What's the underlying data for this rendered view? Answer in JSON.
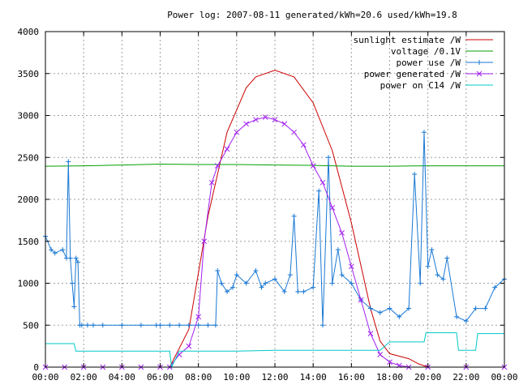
{
  "chart_data": {
    "type": "line",
    "title": "Power log: 2007-08-11 generated/kWh=20.6 used/kWh=19.8",
    "xlabel": "",
    "ylabel": "",
    "grid": true,
    "legend_position": "top-right",
    "x_unit": "hours",
    "xlim": [
      0,
      24
    ],
    "ylim": [
      0,
      4000
    ],
    "x_ticks": [
      "00:00",
      "02:00",
      "04:00",
      "06:00",
      "08:00",
      "10:00",
      "12:00",
      "14:00",
      "16:00",
      "18:00",
      "20:00",
      "22:00",
      "00:00"
    ],
    "y_ticks": [
      "0",
      "500",
      "1000",
      "1500",
      "2000",
      "2500",
      "3000",
      "3500",
      "4000"
    ],
    "series": [
      {
        "name": "sunlight estimate /W",
        "color": "#cc0000",
        "marker": "none",
        "x": [
          6.5,
          7.5,
          8.5,
          9.5,
          10.5,
          11.0,
          12.0,
          13.0,
          14.0,
          15.0,
          16.0,
          17.0,
          17.5,
          18.0,
          18.5,
          19.0,
          19.5,
          20.0
        ],
        "y": [
          0,
          450,
          1800,
          2800,
          3330,
          3460,
          3540,
          3460,
          3150,
          2580,
          1720,
          700,
          310,
          160,
          130,
          100,
          40,
          0
        ]
      },
      {
        "name": "voltage /0.1V",
        "color": "#00a000",
        "marker": "none",
        "x": [
          0,
          2,
          4,
          6,
          8,
          10,
          12,
          14,
          16,
          18,
          20,
          22,
          24
        ],
        "y": [
          2395,
          2400,
          2410,
          2420,
          2415,
          2415,
          2410,
          2405,
          2395,
          2395,
          2400,
          2400,
          2400
        ]
      },
      {
        "name": "power use /W",
        "color": "#1a78d4",
        "marker": "plus",
        "x": [
          0.0,
          0.3,
          0.5,
          0.9,
          1.1,
          1.2,
          1.3,
          1.4,
          1.5,
          1.6,
          1.7,
          1.8,
          1.9,
          2.2,
          2.5,
          3.0,
          4.0,
          5.0,
          5.8,
          6.0,
          6.5,
          7.0,
          7.5,
          8.0,
          8.5,
          8.9,
          9.0,
          9.2,
          9.5,
          9.8,
          10.0,
          10.5,
          11.0,
          11.3,
          11.5,
          12.0,
          12.5,
          12.8,
          13.0,
          13.2,
          13.5,
          14.0,
          14.3,
          14.5,
          14.8,
          15.0,
          15.3,
          15.5,
          16.0,
          16.5,
          17.0,
          17.5,
          18.0,
          18.5,
          19.0,
          19.3,
          19.6,
          19.8,
          20.0,
          20.2,
          20.5,
          20.8,
          21.0,
          21.5,
          22.0,
          22.5,
          23.0,
          23.5,
          24.0
        ],
        "y": [
          1560,
          1400,
          1360,
          1400,
          1300,
          2450,
          1300,
          1000,
          720,
          1300,
          1250,
          500,
          500,
          500,
          500,
          500,
          500,
          500,
          500,
          500,
          500,
          500,
          500,
          500,
          500,
          500,
          1150,
          1000,
          900,
          950,
          1100,
          1000,
          1150,
          950,
          1000,
          1050,
          900,
          1100,
          1800,
          900,
          900,
          950,
          2100,
          500,
          2500,
          1000,
          1400,
          1100,
          1000,
          800,
          700,
          650,
          700,
          600,
          700,
          2300,
          1000,
          2800,
          1200,
          1400,
          1100,
          1050,
          1300,
          600,
          550,
          700,
          700,
          950,
          1050
        ]
      },
      {
        "name": "power generated /W",
        "color": "#a020f0",
        "marker": "cross",
        "x": [
          0,
          1,
          2,
          3,
          4,
          5,
          6,
          6.5,
          7.0,
          7.5,
          8.0,
          8.3,
          8.7,
          9.0,
          9.5,
          10.0,
          10.5,
          11.0,
          11.5,
          12.0,
          12.5,
          13.0,
          13.5,
          14.0,
          14.5,
          15.0,
          15.5,
          16.0,
          16.5,
          17.0,
          17.5,
          18.0,
          18.5,
          19.0,
          20.0,
          22.0,
          24.0
        ],
        "y": [
          0,
          0,
          0,
          0,
          0,
          0,
          0,
          0,
          150,
          250,
          600,
          1500,
          2200,
          2400,
          2600,
          2800,
          2900,
          2950,
          2980,
          2950,
          2900,
          2800,
          2650,
          2400,
          2200,
          1900,
          1600,
          1200,
          800,
          400,
          150,
          60,
          20,
          0,
          0,
          0,
          0
        ]
      },
      {
        "name": "power on C14 /W",
        "color": "#00c8c8",
        "marker": "none",
        "x": [
          0.0,
          1.5,
          1.6,
          6.5,
          6.6,
          7.0,
          8.0,
          10.0,
          12.0,
          14.0,
          16.0,
          17.5,
          18.0,
          19.8,
          19.9,
          21.5,
          21.6,
          22.5,
          22.6,
          23.8,
          24.0
        ],
        "y": [
          280,
          280,
          190,
          190,
          0,
          190,
          190,
          190,
          200,
          200,
          200,
          200,
          300,
          300,
          410,
          410,
          200,
          200,
          400,
          400,
          400
        ]
      }
    ]
  }
}
